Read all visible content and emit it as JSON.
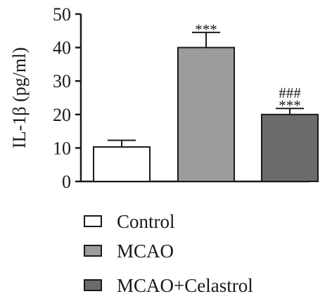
{
  "chart_data": {
    "type": "bar",
    "categories": [
      "Control",
      "MCAO",
      "MCAO+Celastrol"
    ],
    "values": [
      10.3,
      40.0,
      20.0
    ],
    "errors": [
      2.0,
      4.5,
      1.8
    ],
    "colors": [
      "#ffffff",
      "#9c9c9c",
      "#6b6b6b"
    ],
    "ylabel": "IL-1β (pg/ml)",
    "ylim": [
      0,
      50
    ],
    "yticks": [
      "0",
      "10",
      "20",
      "30",
      "40",
      "50"
    ],
    "annotations": [
      {
        "category": "MCAO",
        "lines": [
          "***"
        ]
      },
      {
        "category": "MCAO+Celastrol",
        "lines": [
          "###",
          "***"
        ]
      }
    ],
    "legend": {
      "position": "bottom",
      "entries": [
        "Control",
        "MCAO",
        "MCAO+Celastrol"
      ]
    },
    "grid": false
  }
}
